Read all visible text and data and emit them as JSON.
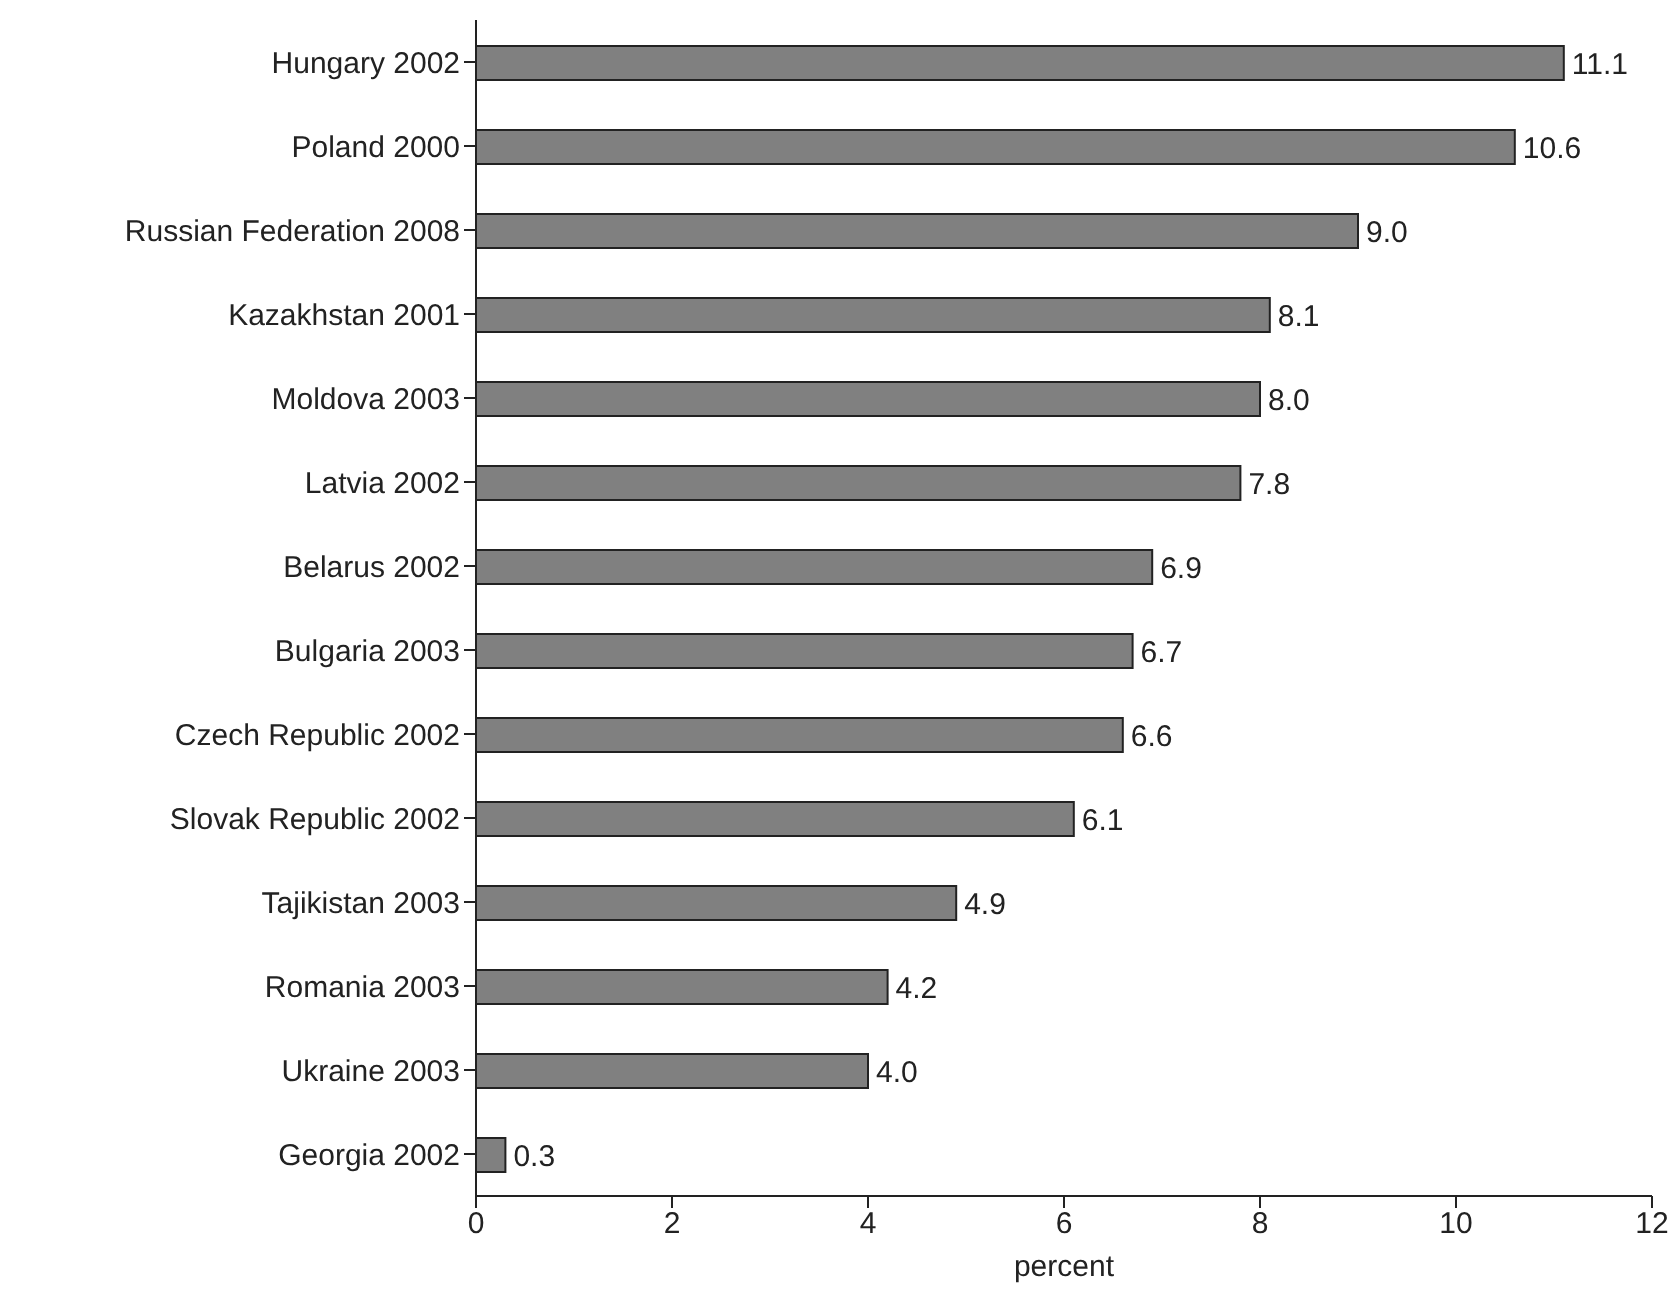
{
  "chart_data": {
    "type": "bar",
    "orientation": "horizontal",
    "xlabel": "percent",
    "categories": [
      "Hungary 2002",
      "Poland 2000",
      "Russian Federation 2008",
      "Kazakhstan 2001",
      "Moldova 2003",
      "Latvia 2002",
      "Belarus 2002",
      "Bulgaria 2003",
      "Czech Republic 2002",
      "Slovak Republic 2002",
      "Tajikistan 2003",
      "Romania 2003",
      "Ukraine 2003",
      "Georgia 2002"
    ],
    "values": [
      11.1,
      10.6,
      9.0,
      8.1,
      8.0,
      7.8,
      6.9,
      6.7,
      6.6,
      6.1,
      4.9,
      4.2,
      4.0,
      0.3
    ],
    "value_labels": [
      "11.1",
      "10.6",
      "9.0",
      "8.1",
      "8.0",
      "7.8",
      "6.9",
      "6.7",
      "6.6",
      "6.1",
      "4.9",
      "4.2",
      "4.0",
      "0.3"
    ],
    "color": "#808080",
    "xlim": [
      0,
      12
    ],
    "xticks": [
      0,
      2,
      4,
      6,
      8,
      10,
      12
    ],
    "grid": false,
    "legend": false
  }
}
